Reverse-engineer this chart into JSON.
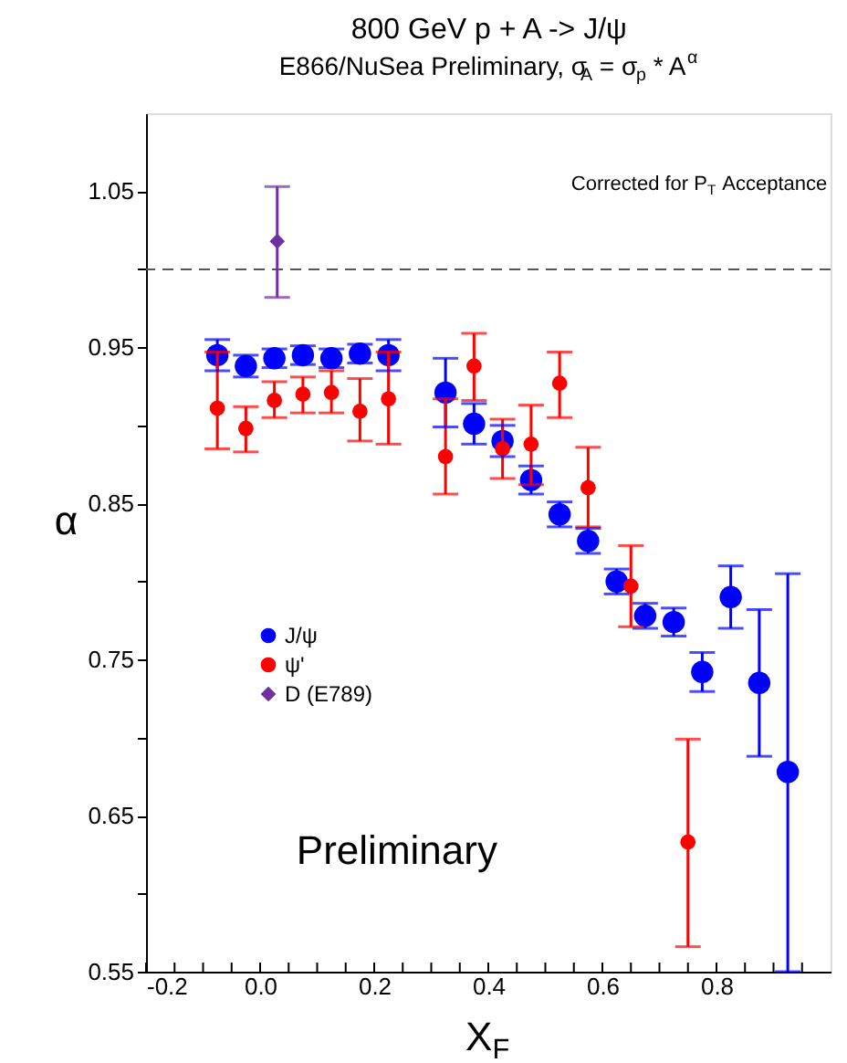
{
  "chart_data": {
    "type": "scatter",
    "title": "800 GeV p + A -> J/ψ",
    "subtitle": "E866/NuSea Preliminary, σ$_{A}$ = σ$_{p}$ * A$^{α}$",
    "xlabel": "X$_{F}$",
    "ylabel": "α",
    "xlim": [
      -0.2,
      1.0
    ],
    "ylim": [
      0.55,
      1.1
    ],
    "xticks": [
      {
        "value": -0.2,
        "label": "-0.2"
      },
      {
        "value": -0.15,
        "label": null
      },
      {
        "value": -0.1,
        "label": null
      },
      {
        "value": -0.05,
        "label": null
      },
      {
        "value": 0,
        "label": "0.0"
      },
      {
        "value": 0.05,
        "label": null
      },
      {
        "value": 0.1,
        "label": null
      },
      {
        "value": 0.15,
        "label": null
      },
      {
        "value": 0.2,
        "label": "0.2"
      },
      {
        "value": 0.25,
        "label": null
      },
      {
        "value": 0.3,
        "label": null
      },
      {
        "value": 0.35,
        "label": null
      },
      {
        "value": 0.4,
        "label": "0.4"
      },
      {
        "value": 0.45,
        "label": null
      },
      {
        "value": 0.5,
        "label": null
      },
      {
        "value": 0.55,
        "label": null
      },
      {
        "value": 0.6,
        "label": "0.6"
      },
      {
        "value": 0.65,
        "label": null
      },
      {
        "value": 0.7,
        "label": null
      },
      {
        "value": 0.75,
        "label": null
      },
      {
        "value": 0.8,
        "label": "0.8"
      },
      {
        "value": 0.85,
        "label": null
      },
      {
        "value": 0.9,
        "label": null
      },
      {
        "value": 0.95,
        "label": null
      }
    ],
    "yticks": [
      0.55,
      {
        "value": 0.6,
        "label": null
      },
      0.65,
      {
        "value": 0.7,
        "label": null
      },
      0.75,
      {
        "value": 0.8,
        "label": null
      },
      0.85,
      {
        "value": 0.9,
        "label": null
      },
      0.95,
      {
        "value": 1.0,
        "label": null
      },
      1.05
    ],
    "grid": false,
    "legend": "left",
    "series": [
      {
        "name": "J/ψ",
        "color": "#0000ff",
        "marker": "circle",
        "x": [
          -0.075,
          -0.025,
          0.025,
          0.075,
          0.125,
          0.175,
          0.225,
          0.325,
          0.375,
          0.425,
          0.475,
          0.525,
          0.575,
          0.625,
          0.675,
          0.725,
          0.775,
          0.825,
          0.875,
          0.925
        ],
        "values": [
          0.945,
          0.938,
          0.943,
          0.945,
          0.943,
          0.946,
          0.945,
          0.921,
          0.901,
          0.89,
          0.865,
          0.843,
          0.826,
          0.8,
          0.778,
          0.774,
          0.742,
          0.79,
          0.735,
          0.678
        ],
        "errors": [
          0.01,
          0.007,
          0.006,
          0.006,
          0.006,
          0.006,
          0.01,
          0.022,
          0.013,
          0.01,
          0.009,
          0.008,
          0.008,
          0.008,
          0.008,
          0.009,
          0.0125,
          0.02,
          0.047,
          [
            0.55,
            0.805
          ]
        ]
      },
      {
        "name": "ψ'",
        "color": "#ff0000",
        "marker": "circle",
        "x": [
          -0.075,
          -0.025,
          0.025,
          0.075,
          0.125,
          0.175,
          0.225,
          0.325,
          0.375,
          0.425,
          0.475,
          0.525,
          0.575,
          0.65,
          0.75
        ],
        "values": [
          0.911,
          0.898,
          0.916,
          0.92,
          0.921,
          0.909,
          0.917,
          0.88,
          0.938,
          0.885,
          0.888,
          0.927,
          0.86,
          0.797,
          0.633
        ],
        "errors": [
          [
            0.885,
            0.947
          ],
          [
            0.883,
            0.912
          ],
          [
            0.905,
            0.928
          ],
          [
            0.908,
            0.931
          ],
          [
            0.908,
            0.935
          ],
          [
            0.89,
            0.93
          ],
          [
            0.888,
            0.947
          ],
          [
            0.856,
            0.917
          ],
          [
            0.916,
            0.959
          ],
          [
            0.866,
            0.904
          ],
          [
            0.862,
            0.913
          ],
          [
            0.905,
            0.947
          ],
          [
            0.835,
            0.886
          ],
          [
            0.771,
            0.823
          ],
          [
            0.566,
            0.699
          ]
        ]
      },
      {
        "name": "D (E789)",
        "color": "#7030a0",
        "marker": "diamond",
        "x": [
          0.03
        ],
        "values": [
          1.018
        ],
        "errors": [
          [
            0.982,
            1.053
          ]
        ]
      }
    ],
    "ref_lines": [
      {
        "axis": "y",
        "value": 1.0,
        "color": "#555555",
        "line_style": "dashed"
      }
    ],
    "annotations": [
      "Corrected for P$_{T}$ Acceptance",
      "Preliminary"
    ]
  }
}
